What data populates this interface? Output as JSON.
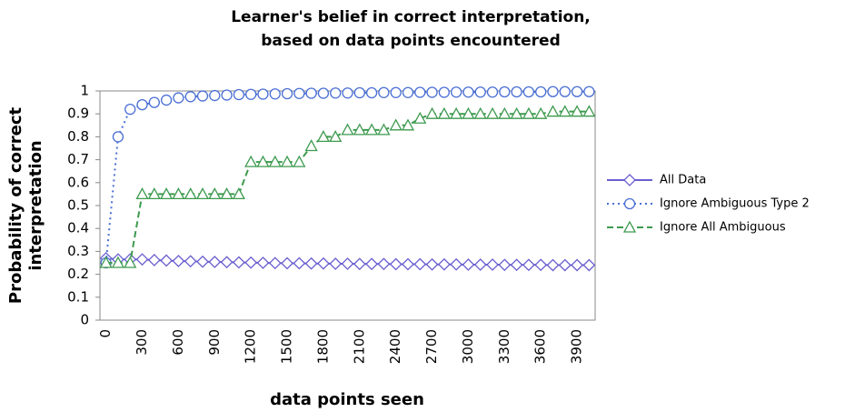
{
  "chart_data": {
    "type": "line",
    "title": [
      "Learner's belief in correct interpretation,",
      "based on data points encountered"
    ],
    "xlabel": "data points seen",
    "ylabel": [
      "Probability of correct",
      "interpretation"
    ],
    "categories": [
      "0",
      null,
      null,
      "300",
      null,
      null,
      "600",
      null,
      null,
      "900",
      null,
      null,
      "1200",
      null,
      null,
      "1500",
      null,
      null,
      "1800",
      null,
      null,
      "2100",
      null,
      null,
      "2400",
      null,
      null,
      "2700",
      null,
      null,
      "3000",
      null,
      null,
      "3300",
      null,
      null,
      "3600",
      null,
      null,
      "3900",
      null
    ],
    "ylim": [
      0,
      1
    ],
    "yticks": [
      0,
      0.1,
      0.2,
      0.3,
      0.4,
      0.5,
      0.6,
      0.7,
      0.8,
      0.9,
      1
    ],
    "series": [
      {
        "name": "All Data",
        "color": "#6a5fcf",
        "marker": "diamond",
        "dash": "solid",
        "values": [
          0.27,
          0.265,
          0.265,
          0.265,
          0.262,
          0.26,
          0.258,
          0.257,
          0.255,
          0.254,
          0.253,
          0.252,
          0.251,
          0.25,
          0.249,
          0.248,
          0.248,
          0.247,
          0.247,
          0.246,
          0.246,
          0.245,
          0.245,
          0.245,
          0.244,
          0.244,
          0.244,
          0.243,
          0.243,
          0.243,
          0.242,
          0.242,
          0.242,
          0.241,
          0.241,
          0.241,
          0.241,
          0.24,
          0.24,
          0.24,
          0.24
        ]
      },
      {
        "name": "Ignore Ambiguous Type 2",
        "color": "#4a6fd4",
        "marker": "circle",
        "dash": "dotted",
        "values": [
          0.25,
          0.8,
          0.92,
          0.94,
          0.95,
          0.96,
          0.97,
          0.975,
          0.978,
          0.98,
          0.982,
          0.984,
          0.985,
          0.986,
          0.987,
          0.988,
          0.989,
          0.99,
          0.99,
          0.991,
          0.991,
          0.992,
          0.992,
          0.993,
          0.993,
          0.993,
          0.994,
          0.994,
          0.994,
          0.995,
          0.995,
          0.995,
          0.995,
          0.996,
          0.996,
          0.996,
          0.996,
          0.997,
          0.997,
          0.997,
          0.997
        ]
      },
      {
        "name": "Ignore All Ambiguous",
        "color": "#3d9a4e",
        "marker": "triangle",
        "dash": "dashed",
        "values": [
          0.25,
          0.25,
          0.25,
          0.55,
          0.55,
          0.55,
          0.55,
          0.55,
          0.55,
          0.55,
          0.55,
          0.55,
          0.69,
          0.69,
          0.69,
          0.69,
          0.69,
          0.76,
          0.8,
          0.8,
          0.83,
          0.83,
          0.83,
          0.83,
          0.85,
          0.85,
          0.88,
          0.9,
          0.9,
          0.9,
          0.9,
          0.9,
          0.9,
          0.9,
          0.9,
          0.9,
          0.9,
          0.91,
          0.91,
          0.91,
          0.91
        ]
      }
    ]
  }
}
